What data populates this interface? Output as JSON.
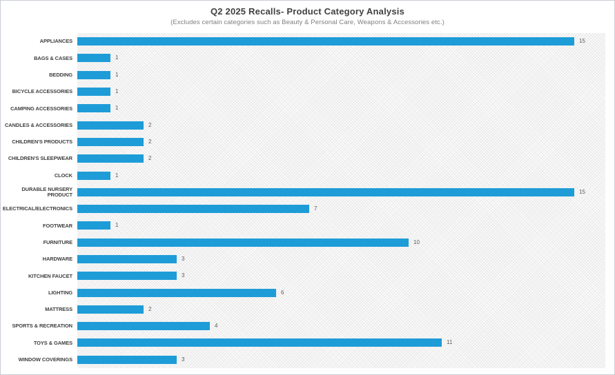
{
  "chart_data": {
    "type": "bar",
    "orientation": "horizontal",
    "title": "Q2 2025 Recalls- Product Category Analysis",
    "subtitle": "(Excludes certain categories such as Beauty & Personal Care, Weapons & Accessories etc.)",
    "categories": [
      "APPLIANCES",
      "BAGS & CASES",
      "BEDDING",
      "BICYCLE ACCESSORIES",
      "CAMPING ACCESSORIES",
      "CANDLES & ACCESSORIES",
      "CHILDREN'S PRODUCTS",
      "CHILDREN'S SLEEPWEAR",
      "CLOCK",
      "DURABLE NURSERY PRODUCT",
      "ELECTRICAL/ELECTRONICS",
      "FOOTWEAR",
      "FURNITURE",
      "HARDWARE",
      "KITCHEN FAUCET",
      "LIGHTING",
      "MATTRESS",
      "SPORTS & RECREATION",
      "TOYS & GAMES",
      "WINDOW COVERINGS"
    ],
    "values": [
      15,
      1,
      1,
      1,
      1,
      2,
      2,
      2,
      1,
      15,
      7,
      1,
      10,
      3,
      3,
      6,
      2,
      4,
      11,
      3
    ],
    "xlim": [
      0,
      15
    ],
    "value_labels_shown": true,
    "grid": false,
    "legend": "none"
  },
  "colors": {
    "bar": "#1E9CD7",
    "title_text": "#3F3F3F",
    "subtitle_text": "#7F7F7F",
    "category_label_text": "#3F3F3F",
    "value_label_text": "#595959",
    "frame_border": "#C9CED4",
    "plot_background": "#FCFCFC"
  }
}
